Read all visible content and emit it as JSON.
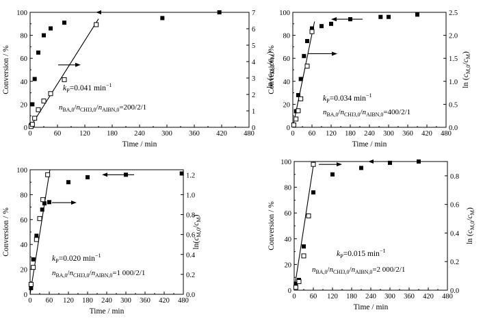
{
  "chart_data": [
    {
      "type": "scatter",
      "xlabel": "Time / min",
      "ylabel": "Conversion / %",
      "y2label": "ln (cM,0/cM)",
      "xlim": [
        0,
        480
      ],
      "ylim": [
        0,
        100
      ],
      "y2lim": [
        0,
        7
      ],
      "x_ticks": [
        "0",
        "60",
        "120",
        "180",
        "240",
        "300",
        "360",
        "420",
        "480"
      ],
      "y_ticks": [
        "0",
        "20",
        "40",
        "60",
        "80",
        "100"
      ],
      "y2_ticks": [
        "0",
        "1",
        "2",
        "3",
        "4",
        "5",
        "6",
        "7"
      ],
      "series": [
        {
          "axis": "left",
          "marker": "filled-square",
          "x": [
            2,
            5,
            10,
            18,
            30,
            45,
            75,
            290,
            415
          ],
          "y": [
            2,
            20,
            42,
            65,
            80,
            86,
            91,
            95,
            100
          ]
        },
        {
          "axis": "right",
          "marker": "open-square",
          "x": [
            2,
            5,
            10,
            18,
            30,
            45,
            75,
            145
          ],
          "y": [
            0.05,
            0.18,
            0.55,
            1.07,
            1.6,
            2.05,
            2.9,
            6.25
          ]
        }
      ],
      "fit_line": {
        "x": [
          0,
          150
        ],
        "y": [
          0,
          6.6
        ]
      },
      "arrows": [
        {
          "direction": "left",
          "y_left": 100
        },
        {
          "direction": "right",
          "y_right": 3.8
        }
      ],
      "annotation_kp": "kP=0.041 min−1",
      "annotation_ratio": "nBA,0/nCHI3,0/nAIBN,0=200/2/1"
    },
    {
      "type": "scatter",
      "xlabel": "Time / min",
      "ylabel": "Conversion / %",
      "y2label": "ln (cM,0/cM)",
      "xlim": [
        0,
        480
      ],
      "ylim": [
        0,
        100
      ],
      "y2lim": [
        0,
        2.5
      ],
      "x_ticks": [
        "0",
        "60",
        "120",
        "180",
        "240",
        "300",
        "360",
        "420",
        "480"
      ],
      "y_ticks": [
        "0",
        "20",
        "40",
        "60",
        "80",
        "100"
      ],
      "y2_ticks": [
        "0.0",
        "0.5",
        "1.0",
        "1.5",
        "2.0",
        "2.5"
      ],
      "series": [
        {
          "axis": "left",
          "marker": "filled-square",
          "x": [
            3,
            10,
            17,
            25,
            35,
            45,
            60,
            90,
            120,
            180,
            275,
            300,
            390
          ],
          "y": [
            2,
            14,
            28,
            42,
            62,
            75,
            86,
            88,
            90,
            94,
            96,
            96,
            98
          ]
        },
        {
          "axis": "right",
          "marker": "open-square",
          "x": [
            3,
            10,
            17,
            25,
            45,
            60
          ],
          "y": [
            0.05,
            0.18,
            0.36,
            0.62,
            1.33,
            2.08
          ]
        }
      ],
      "fit_line": {
        "x": [
          0,
          68
        ],
        "y": [
          0,
          2.3
        ]
      },
      "arrows": [
        {
          "direction": "left",
          "y_left": 94
        },
        {
          "direction": "right",
          "y_right": 1.6
        }
      ],
      "annotation_kp": "kP=0.034 min−1",
      "annotation_ratio": "nBA,0/nCHI3,0/nAIBN,0=400/2/1"
    },
    {
      "type": "scatter",
      "xlabel": "Time / min",
      "ylabel": "Conversion / %",
      "y2label": "ln(cM,0/cM)",
      "xlim": [
        0,
        480
      ],
      "ylim": [
        0,
        100
      ],
      "y2lim": [
        0,
        1.25
      ],
      "x_ticks": [
        "0",
        "60",
        "120",
        "180",
        "240",
        "300",
        "360",
        "420",
        "480"
      ],
      "y_ticks": [
        "0",
        "20",
        "40",
        "60",
        "80",
        "100"
      ],
      "y2_ticks": [
        "0.0",
        "0.2",
        "0.4",
        "0.6",
        "0.8",
        "1.0",
        "1.2"
      ],
      "series": [
        {
          "axis": "left",
          "marker": "filled-square",
          "x": [
            3,
            10,
            20,
            30,
            38,
            45,
            60,
            120,
            180,
            300,
            475
          ],
          "y": [
            5,
            28,
            47,
            61,
            68,
            73,
            74,
            90,
            94,
            96,
            97
          ]
        },
        {
          "axis": "right",
          "marker": "open-square",
          "x": [
            3,
            10,
            20,
            30,
            40,
            55
          ],
          "y": [
            0.1,
            0.27,
            0.55,
            0.76,
            0.95,
            1.2
          ]
        }
      ],
      "fit_line": {
        "x": [
          0,
          62
        ],
        "y": [
          0,
          1.25
        ]
      },
      "arrows": [
        {
          "direction": "left",
          "y_left": 96
        },
        {
          "direction": "right",
          "y_right": 0.92
        }
      ],
      "annotation_kp": "kP=0.020 min−1",
      "annotation_ratio": "nBA,0/nCHI3,0/nAIBN,0=1 000/2/1"
    },
    {
      "type": "scatter",
      "xlabel": "Time / min",
      "ylabel": "Conversion / %",
      "y2label": "ln (cM,0/cM)",
      "xlim": [
        0,
        480
      ],
      "ylim": [
        0,
        100
      ],
      "y2lim": [
        0,
        0.9
      ],
      "x_ticks": [
        "0",
        "60",
        "120",
        "180",
        "240",
        "300",
        "360",
        "420",
        "480"
      ],
      "y_ticks": [
        "0",
        "20",
        "40",
        "60",
        "80",
        "100"
      ],
      "y2_ticks": [
        "0.0",
        "0.2",
        "0.4",
        "0.6",
        "0.8"
      ],
      "series": [
        {
          "axis": "left",
          "marker": "filled-square",
          "x": [
            5,
            15,
            30,
            45,
            60,
            120,
            210,
            300,
            390
          ],
          "y": [
            5,
            8,
            34,
            58,
            76,
            90,
            95,
            99,
            100
          ]
        },
        {
          "axis": "right",
          "marker": "open-square",
          "x": [
            5,
            15,
            30,
            45,
            60
          ],
          "y": [
            0.02,
            0.06,
            0.24,
            0.52,
            0.88
          ]
        }
      ],
      "fit_line": {
        "x": [
          0,
          62
        ],
        "y": [
          0,
          0.9
        ]
      },
      "arrows": [
        {
          "direction": "left",
          "y_left": 100
        },
        {
          "direction": "right",
          "y_right": 0.88
        }
      ],
      "annotation_kp": "kP=0.015 min−1",
      "annotation_ratio": "nBA,0/nCHI3,0/nAIBN,0=2 000/2/1"
    }
  ]
}
